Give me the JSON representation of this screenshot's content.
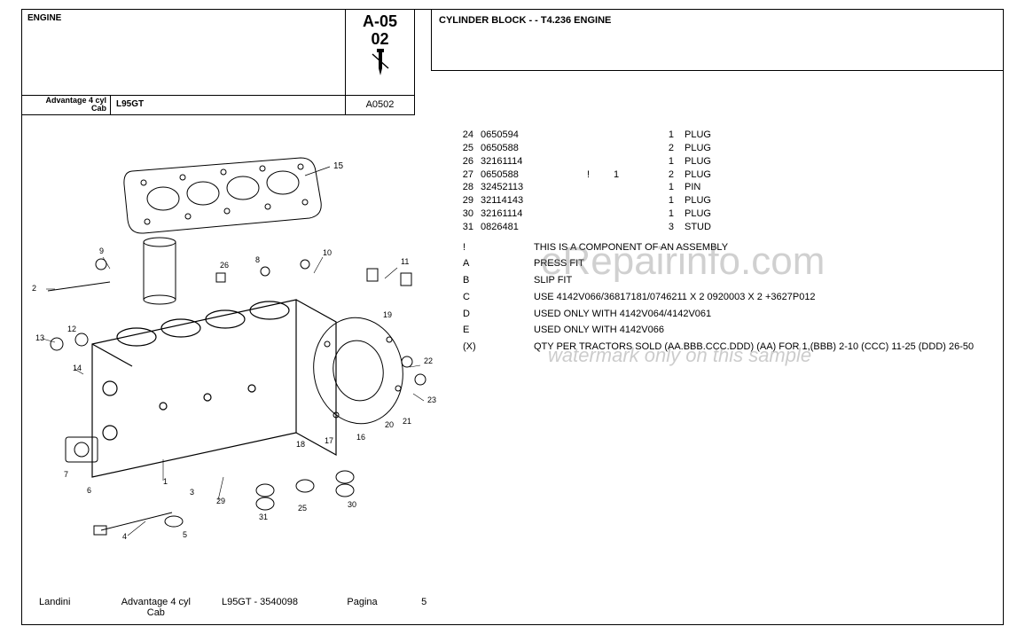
{
  "header": {
    "engine_label": "ENGINE",
    "model_line1": "Advantage 4 cyl",
    "model_line2": "Cab",
    "model_code": "L95GT",
    "section_code_l1": "A-05",
    "section_code_l2": "02",
    "section_ref": "A0502",
    "title": "CYLINDER BLOCK -  - T4.236 ENGINE"
  },
  "parts": [
    {
      "ref": "24",
      "part": "0650594",
      "flag": "",
      "note": "",
      "qty": "1",
      "desc": "PLUG"
    },
    {
      "ref": "25",
      "part": "0650588",
      "flag": "",
      "note": "",
      "qty": "2",
      "desc": "PLUG"
    },
    {
      "ref": "26",
      "part": "32161114",
      "flag": "",
      "note": "",
      "qty": "1",
      "desc": "PLUG"
    },
    {
      "ref": "27",
      "part": "0650588",
      "flag": "!",
      "note": "1",
      "qty": "2",
      "desc": "PLUG"
    },
    {
      "ref": "28",
      "part": "32452113",
      "flag": "",
      "note": "",
      "qty": "1",
      "desc": "PIN"
    },
    {
      "ref": "29",
      "part": "32114143",
      "flag": "",
      "note": "",
      "qty": "1",
      "desc": "PLUG"
    },
    {
      "ref": "30",
      "part": "32161114",
      "flag": "",
      "note": "",
      "qty": "1",
      "desc": "PLUG"
    },
    {
      "ref": "31",
      "part": "0826481",
      "flag": "",
      "note": "",
      "qty": "3",
      "desc": "STUD"
    }
  ],
  "notes": [
    {
      "key": "!",
      "val": "THIS IS A COMPONENT OF AN ASSEMBLY"
    },
    {
      "key": "A",
      "val": "PRESS FIT"
    },
    {
      "key": "B",
      "val": "SLIP FIT"
    },
    {
      "key": "C",
      "val": "USE 4142V066/36817181/0746211 X 2 0920003 X 2 +3627P012"
    },
    {
      "key": "D",
      "val": "USED ONLY WITH 4142V064/4142V061"
    },
    {
      "key": "E",
      "val": "USED ONLY WITH 4142V066"
    },
    {
      "key": "(X)",
      "val": "QTY PER TRACTORS SOLD  (AA.BBB.CCC.DDD) (AA) FOR 1,(BBB) 2-10 (CCC) 11-25 (DDD) 26-50"
    }
  ],
  "watermark": {
    "main": "eRepairinfo.com",
    "sub": "watermark only on this sample"
  },
  "diagram": {
    "callouts": [
      "15",
      "9",
      "2",
      "26",
      "8",
      "10",
      "11",
      "13",
      "12",
      "14",
      "19",
      "22",
      "23",
      "21",
      "20",
      "16",
      "17",
      "18",
      "7",
      "6",
      "1",
      "3",
      "29",
      "4",
      "31",
      "25",
      "30",
      "5"
    ],
    "color": "#000000",
    "background": "#ffffff"
  },
  "footer": {
    "brand": "Landini",
    "model_l1": "Advantage 4 cyl",
    "model_l2": "Cab",
    "code": "L95GT - 3540098",
    "page_label": "Pagina",
    "page_num": "5"
  },
  "colors": {
    "border": "#000000",
    "text": "#000000",
    "background": "#ffffff",
    "watermark": "rgba(120,120,120,0.35)"
  }
}
